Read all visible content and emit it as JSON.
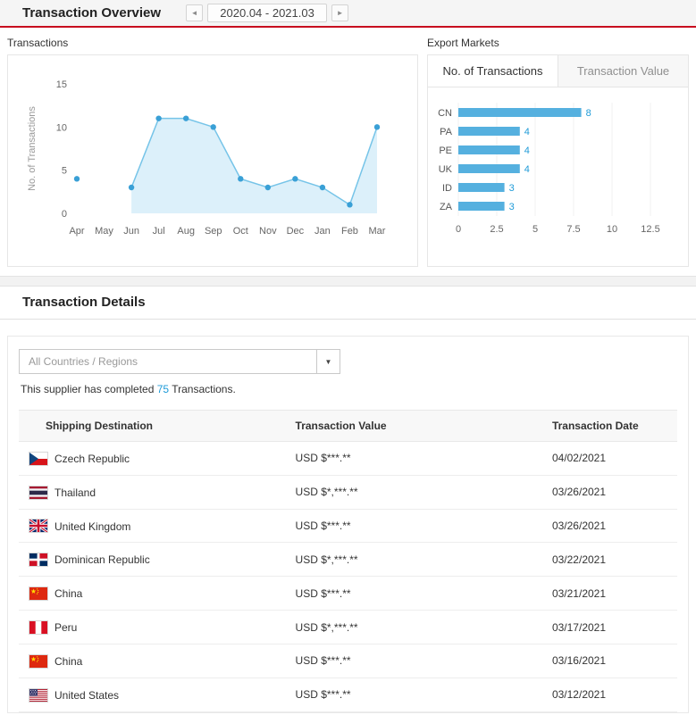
{
  "colors": {
    "accent_red": "#c70a1e",
    "chart_line_blue": "#76c4e8",
    "chart_dot_blue": "#3aa0d6",
    "chart_area_blue": "#bfe3f5",
    "bar_blue": "#55b0df",
    "link_blue": "#1f9bd8"
  },
  "header": {
    "title": "Transaction Overview",
    "date_range": "2020.04 - 2021.03",
    "prev_icon": "◄",
    "next_icon": "►"
  },
  "transactions_panel": {
    "label": "Transactions"
  },
  "export_markets_panel": {
    "label": "Export Markets",
    "tabs": [
      {
        "label": "No. of Transactions",
        "active": true
      },
      {
        "label": "Transaction Value",
        "active": false
      }
    ]
  },
  "chart_data": [
    {
      "type": "line",
      "title": "Transactions",
      "x": [
        "Apr",
        "May",
        "Jun",
        "Jul",
        "Aug",
        "Sep",
        "Oct",
        "Nov",
        "Dec",
        "Jan",
        "Feb",
        "Mar"
      ],
      "values": [
        4,
        null,
        3,
        11,
        11,
        10,
        4,
        3,
        4,
        3,
        1,
        10
      ],
      "ylabel": "No. of Transactions",
      "ylim": [
        0,
        15
      ],
      "yticks": [
        0,
        5,
        10,
        15
      ],
      "area": true,
      "grid": false
    },
    {
      "type": "bar",
      "orientation": "horizontal",
      "title": "Export Markets - No. of Transactions",
      "categories": [
        "CN",
        "PA",
        "PE",
        "UK",
        "ID",
        "ZA"
      ],
      "values": [
        8,
        4,
        4,
        4,
        3,
        3
      ],
      "xlim": [
        0,
        12.5
      ],
      "xticks": [
        0,
        2.5,
        5,
        7.5,
        10,
        12.5
      ],
      "grid": true
    }
  ],
  "details": {
    "title": "Transaction Details",
    "dropdown_value": "All Countries / Regions",
    "dropdown_caret": "▼",
    "summary_prefix": "This supplier has completed ",
    "summary_count": "75",
    "summary_suffix": " Transactions.",
    "table": {
      "columns": [
        "Shipping Destination",
        "Transaction Value",
        "Transaction Date"
      ],
      "rows": [
        {
          "country": "Czech Republic",
          "flag": "cz",
          "value": "USD $***.**",
          "date": "04/02/2021"
        },
        {
          "country": "Thailand",
          "flag": "th",
          "value": "USD $*,***.**",
          "date": "03/26/2021"
        },
        {
          "country": "United Kingdom",
          "flag": "gb",
          "value": "USD $***.**",
          "date": "03/26/2021"
        },
        {
          "country": "Dominican Republic",
          "flag": "do",
          "value": "USD $*,***.**",
          "date": "03/22/2021"
        },
        {
          "country": "China",
          "flag": "cn",
          "value": "USD $***.**",
          "date": "03/21/2021"
        },
        {
          "country": "Peru",
          "flag": "pe",
          "value": "USD $*,***.**",
          "date": "03/17/2021"
        },
        {
          "country": "China",
          "flag": "cn",
          "value": "USD $***.**",
          "date": "03/16/2021"
        },
        {
          "country": "United States",
          "flag": "us",
          "value": "USD $***.**",
          "date": "03/12/2021"
        }
      ]
    }
  }
}
